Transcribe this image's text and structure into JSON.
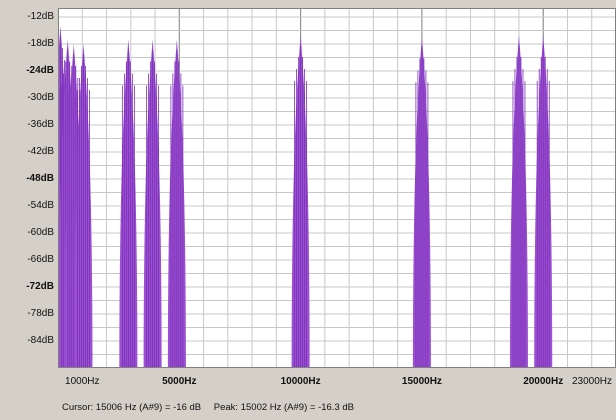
{
  "status": {
    "cursor": "Cursor: 15006 Hz (A#9) = -16 dB",
    "peak": "Peak: 15002 Hz (A#9) = -16.3 dB"
  },
  "colors": {
    "plot_bg": "#ffffff",
    "grid": "#c8c8c8",
    "bars": "#9b4fd1",
    "panel": "#d4d0c8"
  },
  "chart_data": {
    "type": "area",
    "xlabel": "",
    "ylabel": "",
    "x_unit": "Hz",
    "y_unit": "dB",
    "xlim": [
      0,
      23000
    ],
    "ylim": [
      -90,
      -10
    ],
    "grid": true,
    "y_ticks": [
      {
        "value": -12,
        "label": "-12dB",
        "bold": false
      },
      {
        "value": -18,
        "label": "-18dB",
        "bold": false
      },
      {
        "value": -24,
        "label": "-24dB",
        "bold": true
      },
      {
        "value": -30,
        "label": "-30dB",
        "bold": false
      },
      {
        "value": -36,
        "label": "-36dB",
        "bold": false
      },
      {
        "value": -42,
        "label": "-42dB",
        "bold": false
      },
      {
        "value": -48,
        "label": "-48dB",
        "bold": true
      },
      {
        "value": -54,
        "label": "-54dB",
        "bold": false
      },
      {
        "value": -60,
        "label": "-60dB",
        "bold": false
      },
      {
        "value": -66,
        "label": "-66dB",
        "bold": false
      },
      {
        "value": -72,
        "label": "-72dB",
        "bold": true
      },
      {
        "value": -78,
        "label": "-78dB",
        "bold": false
      },
      {
        "value": -84,
        "label": "-84dB",
        "bold": false
      }
    ],
    "x_ticks": [
      {
        "value": 1000,
        "label": "1000Hz",
        "bold": false
      },
      {
        "value": 5000,
        "label": "5000Hz",
        "bold": true
      },
      {
        "value": 10000,
        "label": "10000Hz",
        "bold": true
      },
      {
        "value": 15000,
        "label": "15000Hz",
        "bold": true
      },
      {
        "value": 20000,
        "label": "20000Hz",
        "bold": true
      },
      {
        "value": 23000,
        "label": "23000Hz",
        "bold": false
      }
    ],
    "peaks": [
      {
        "x": 100,
        "y": -14
      },
      {
        "x": 400,
        "y": -17
      },
      {
        "x": 650,
        "y": -18
      },
      {
        "x": 1050,
        "y": -18
      },
      {
        "x": 2900,
        "y": -17
      },
      {
        "x": 3900,
        "y": -17
      },
      {
        "x": 4900,
        "y": -17
      },
      {
        "x": 10000,
        "y": -16
      },
      {
        "x": 15000,
        "y": -16.3
      },
      {
        "x": 19000,
        "y": -16
      },
      {
        "x": 20000,
        "y": -16
      }
    ],
    "floor": -90
  }
}
